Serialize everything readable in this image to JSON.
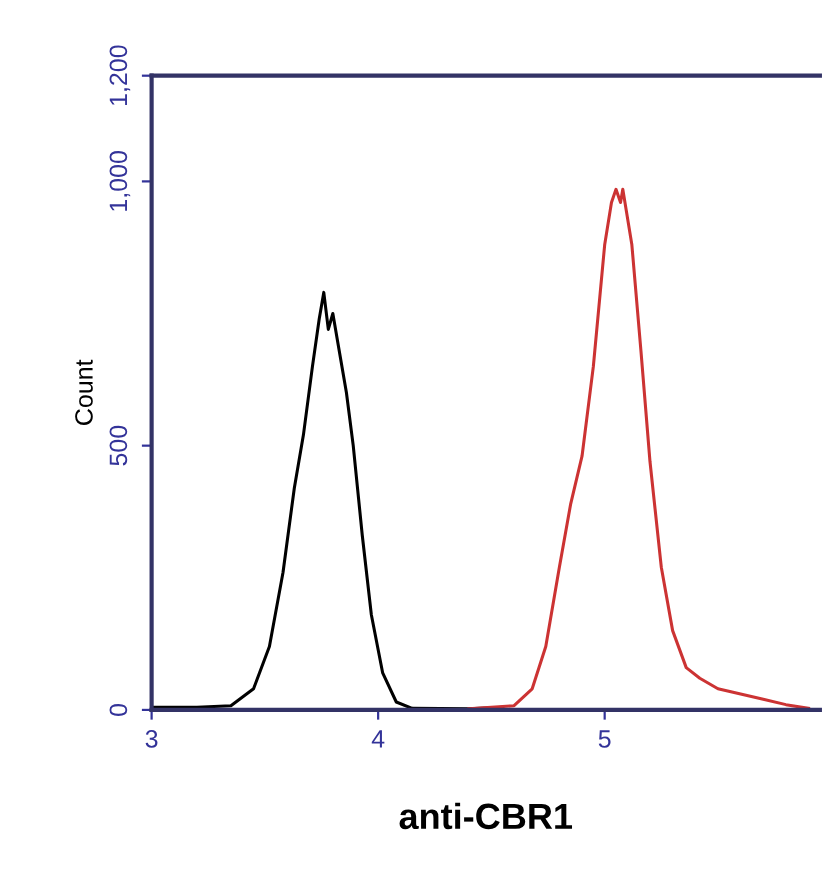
{
  "chart_data": {
    "type": "line",
    "xlabel": "anti-CBR1",
    "ylabel": "Count",
    "xlim": [
      3,
      5.95
    ],
    "xticks": [
      3,
      4,
      5
    ],
    "ylim": [
      0,
      1200
    ],
    "yticks": [
      0,
      500,
      {
        "value": 1000,
        "label": "1,000"
      },
      {
        "value": 1200,
        "label": "1,200"
      }
    ],
    "grid": false,
    "legend": false,
    "marker": "none",
    "line_style": "solid",
    "series": [
      {
        "color": "#000000",
        "x": [
          3.0,
          3.2,
          3.35,
          3.45,
          3.52,
          3.58,
          3.63,
          3.67,
          3.71,
          3.74,
          3.76,
          3.78,
          3.8,
          3.82,
          3.86,
          3.89,
          3.93,
          3.97,
          4.02,
          4.08,
          4.15,
          4.4,
          4.55
        ],
        "values": [
          5,
          5,
          8,
          40,
          120,
          260,
          420,
          520,
          650,
          740,
          790,
          720,
          750,
          700,
          600,
          500,
          330,
          180,
          70,
          15,
          3,
          2,
          5
        ]
      },
      {
        "color": "#cc3333",
        "x": [
          4.4,
          4.6,
          4.68,
          4.74,
          4.8,
          4.85,
          4.9,
          4.95,
          5.0,
          5.03,
          5.05,
          5.07,
          5.08,
          5.12,
          5.16,
          5.2,
          5.25,
          5.3,
          5.36,
          5.42,
          5.5,
          5.6,
          5.7,
          5.8,
          5.9
        ],
        "values": [
          2,
          8,
          40,
          120,
          270,
          390,
          480,
          650,
          880,
          960,
          985,
          960,
          985,
          880,
          680,
          470,
          270,
          150,
          80,
          60,
          40,
          30,
          20,
          10,
          3
        ]
      }
    ]
  }
}
